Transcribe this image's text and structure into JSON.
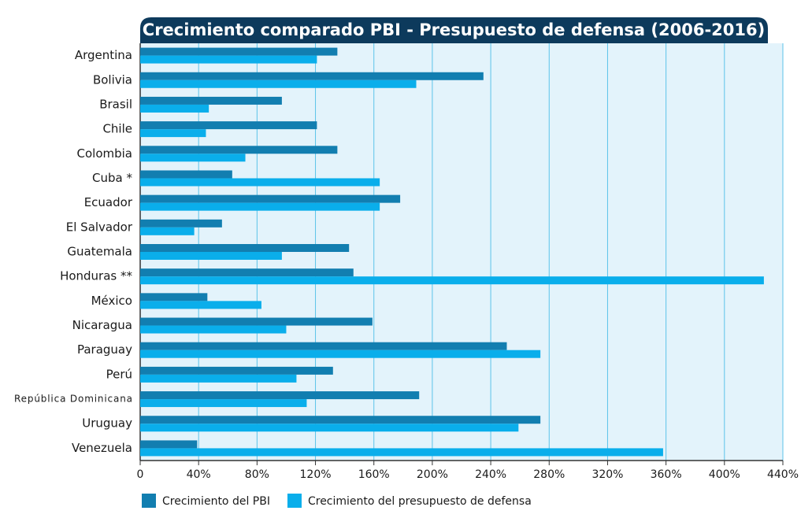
{
  "chart_data": {
    "type": "hbar",
    "title": "Crecimiento comparado PBI - Presupuesto de defensa (2006-2016)",
    "categories": [
      "Argentina",
      "Bolivia",
      "Brasil",
      "Chile",
      "Colombia",
      "Cuba *",
      "Ecuador",
      "El Salvador",
      "Guatemala",
      "Honduras **",
      "México",
      "Nicaragua",
      "Paraguay",
      "Perú",
      "República Dominicana",
      "Uruguay",
      "Venezuela"
    ],
    "series": [
      {
        "name": "Crecimiento del PBI",
        "color": "#127eb0",
        "values": [
          135,
          235,
          97,
          121,
          135,
          63,
          178,
          56,
          143,
          146,
          46,
          159,
          251,
          132,
          191,
          274,
          39
        ]
      },
      {
        "name": "Crecimiento del presupuesto de defensa",
        "color": "#0aaeeb",
        "values": [
          121,
          189,
          47,
          45,
          72,
          164,
          164,
          37,
          97,
          427,
          83,
          100,
          274,
          107,
          114,
          259,
          358
        ]
      }
    ],
    "xlim": [
      0,
      440
    ],
    "xticks": [
      0,
      {
        "value": 40,
        "label": "40%"
      },
      {
        "value": 80,
        "label": "80%"
      },
      {
        "value": 120,
        "label": "120%"
      },
      {
        "value": 160,
        "label": "160%"
      },
      {
        "value": 200,
        "label": "200%"
      },
      {
        "value": 240,
        "label": "240%"
      },
      {
        "value": 280,
        "label": "280%"
      },
      {
        "value": 320,
        "label": "320%"
      },
      {
        "value": 360,
        "label": "360%"
      },
      {
        "value": 400,
        "label": "400%"
      },
      {
        "value": 440,
        "label": "440%"
      }
    ],
    "grid": true
  }
}
